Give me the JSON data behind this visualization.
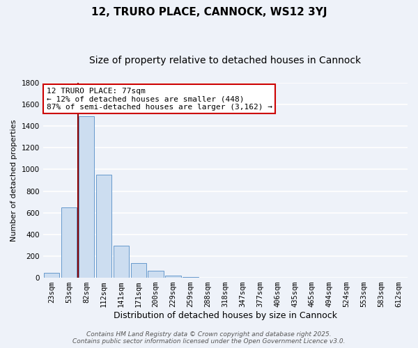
{
  "title": "12, TRURO PLACE, CANNOCK, WS12 3YJ",
  "subtitle": "Size of property relative to detached houses in Cannock",
  "xlabel": "Distribution of detached houses by size in Cannock",
  "ylabel": "Number of detached properties",
  "bar_color": "#ccddf0",
  "bar_edge_color": "#6699cc",
  "background_color": "#eef2f9",
  "grid_color": "#ffffff",
  "categories": [
    "23sqm",
    "53sqm",
    "82sqm",
    "112sqm",
    "141sqm",
    "171sqm",
    "200sqm",
    "229sqm",
    "259sqm",
    "288sqm",
    "318sqm",
    "347sqm",
    "377sqm",
    "406sqm",
    "435sqm",
    "465sqm",
    "494sqm",
    "524sqm",
    "553sqm",
    "583sqm",
    "612sqm"
  ],
  "values": [
    45,
    650,
    1490,
    950,
    295,
    135,
    65,
    20,
    5,
    2,
    1,
    1,
    0,
    0,
    0,
    0,
    0,
    0,
    0,
    0,
    0
  ],
  "ylim": [
    0,
    1800
  ],
  "yticks": [
    0,
    200,
    400,
    600,
    800,
    1000,
    1200,
    1400,
    1600,
    1800
  ],
  "annotation_line1": "12 TRURO PLACE: 77sqm",
  "annotation_line2": "← 12% of detached houses are smaller (448)",
  "annotation_line3": "87% of semi-detached houses are larger (3,162) →",
  "vline_color": "#8b0000",
  "footer_line1": "Contains HM Land Registry data © Crown copyright and database right 2025.",
  "footer_line2": "Contains public sector information licensed under the Open Government Licence v3.0.",
  "title_fontsize": 11,
  "subtitle_fontsize": 10,
  "xlabel_fontsize": 9,
  "ylabel_fontsize": 8,
  "tick_fontsize": 7.5,
  "annotation_fontsize": 8,
  "footer_fontsize": 6.5
}
